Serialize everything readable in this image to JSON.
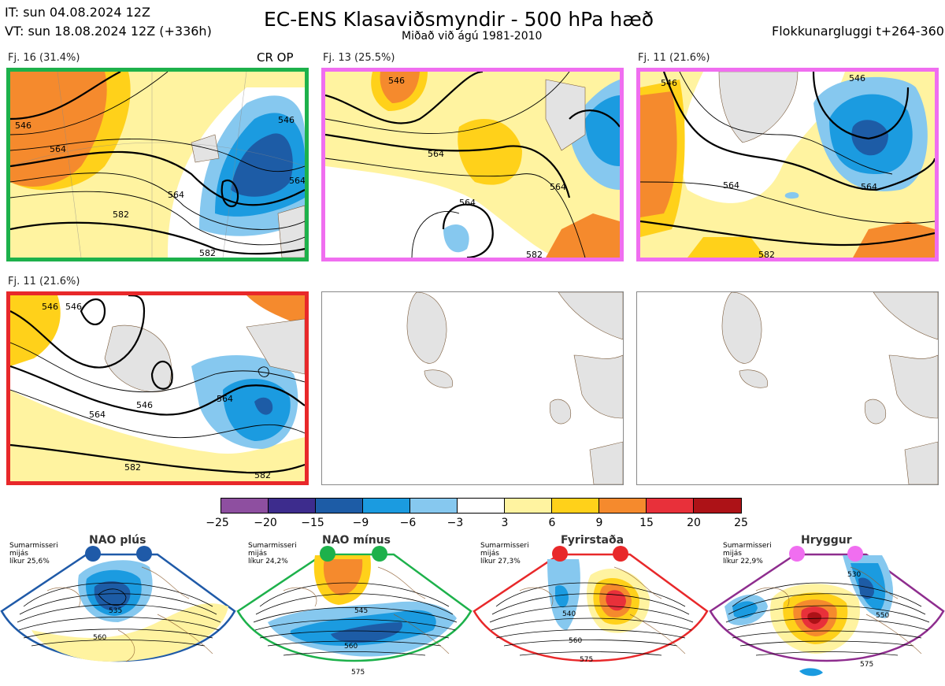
{
  "header": {
    "it_line": "IT: sun 04.08.2024 12Z",
    "vt_line": "VT: sun 18.08.2024 12Z  (+336h)",
    "title": "EC-ENS Klasaviðsmyndir - 500 hPa hæð",
    "subtitle": "Miðað við ágú 1981-2010",
    "window": "Flokkunargluggi t+264-360"
  },
  "colors": {
    "green": "#1db14b",
    "magenta": "#f06ef0",
    "red": "#e8282a",
    "blue_regime": "#1f5aa8",
    "land_gray": "#e3e3e3"
  },
  "clusters": [
    {
      "label": "Fj. 16 (31.4%)",
      "tag": "CR OP",
      "border": "green",
      "contours": [
        "546",
        "564",
        "564",
        "582",
        "582",
        "564",
        "546"
      ]
    },
    {
      "label": "Fj. 13 (25.5%)",
      "tag": "",
      "border": "magenta",
      "contours": [
        "546",
        "564",
        "564",
        "582",
        "564"
      ]
    },
    {
      "label": "Fj. 11 (21.6%)",
      "tag": "",
      "border": "magenta",
      "contours": [
        "546",
        "546",
        "564",
        "582",
        "564"
      ]
    },
    {
      "label": "Fj. 11 (21.6%)",
      "tag": "",
      "border": "red",
      "contours": [
        "546",
        "546",
        "564",
        "546",
        "564",
        "582",
        "582"
      ]
    }
  ],
  "colorbar": {
    "ticks": [
      "−25",
      "−20",
      "−15",
      "−9",
      "−6",
      "−3",
      "3",
      "6",
      "9",
      "15",
      "20",
      "25"
    ],
    "colors": [
      "#8e4fa0",
      "#3d2c8d",
      "#1d5ca6",
      "#1b9be0",
      "#86c8ef",
      "#ffffff",
      "#fff3a0",
      "#ffd11a",
      "#f58a2d",
      "#e8303a",
      "#ad1217"
    ]
  },
  "regimes": [
    {
      "title": "NAO plús",
      "info": [
        "Sumarmisseri",
        "mijás",
        "líkur 25,6%"
      ],
      "contours": [
        "535",
        "560"
      ],
      "frame": "#1f5aa8",
      "dot": "#1f5aa8"
    },
    {
      "title": "NAO mínus",
      "info": [
        "Sumarmisseri",
        "mijás",
        "líkur 24,2%"
      ],
      "contours": [
        "545",
        "560",
        "575"
      ],
      "frame": "#1db14b",
      "dot": "#1db14b"
    },
    {
      "title": "Fyrirstaða",
      "info": [
        "Sumarmisseri",
        "mijás",
        "líkur 27,3%"
      ],
      "contours": [
        "540",
        "560",
        "575"
      ],
      "frame": "#e8282a",
      "dot": "#e8282a"
    },
    {
      "title": "Hryggur",
      "info": [
        "Sumarmisseri",
        "mijás",
        "líkur 22,9%"
      ],
      "contours": [
        "530",
        "550",
        "575"
      ],
      "frame": "#8e2d8e",
      "dot": "#f06ef0"
    }
  ]
}
